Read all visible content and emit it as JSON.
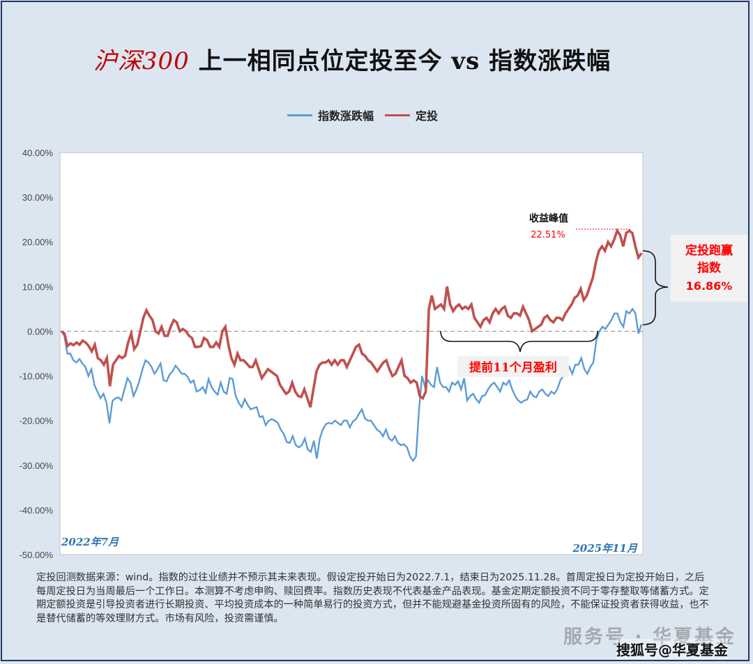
{
  "title": {
    "prefix": "沪深300",
    "main": "上一相同点位定投至今 vs 指数涨跌幅"
  },
  "colors": {
    "index": "#5b9bd5",
    "dca": "#c0504d",
    "frame": "#1f3864",
    "accent": "#ff0000"
  },
  "chart_data": {
    "type": "line",
    "ylim": [
      -50,
      40
    ],
    "yticks": [
      "40.00%",
      "30.00%",
      "20.00%",
      "10.00%",
      "0.00%",
      "-10.00%",
      "-20.00%",
      "-30.00%",
      "-40.00%",
      "-50.00%"
    ],
    "x_start_label": "2022年7月",
    "x_end_label": "2025年11月",
    "legend_position": "top-center",
    "grid": false,
    "series": [
      {
        "name": "指数涨跌幅",
        "color": "#5b9bd5",
        "values": [
          0,
          -1,
          -5,
          -5,
          -6.5,
          -7,
          -6.2,
          -7.2,
          -8,
          -10,
          -8.5,
          -12,
          -13.5,
          -15,
          -14,
          -16,
          -20.6,
          -15.6,
          -15,
          -14.8,
          -15.5,
          -13,
          -10.5,
          -11.5,
          -14.5,
          -13,
          -11,
          -8.5,
          -6.5,
          -7,
          -8,
          -9.5,
          -8.5,
          -7.2,
          -11,
          -11.2,
          -9.7,
          -9,
          -7.7,
          -8.5,
          -9.5,
          -9.5,
          -10.2,
          -11.5,
          -11,
          -13.5,
          -13.2,
          -12.5,
          -13.8,
          -10.7,
          -12.5,
          -13.5,
          -14.2,
          -11.5,
          -13.5,
          -14,
          -10.5,
          -10.7,
          -14.5,
          -16,
          -17,
          -15.2,
          -16.5,
          -17.5,
          -17.2,
          -17,
          -19.2,
          -19,
          -21,
          -20,
          -19.7,
          -20,
          -20.5,
          -22,
          -23,
          -24.8,
          -25,
          -23.5,
          -25.5,
          -26,
          -25.5,
          -24,
          -26.5,
          -27,
          -24.5,
          -28.5,
          -24,
          -22,
          -20.8,
          -20.5,
          -20.7,
          -20,
          -20.5,
          -21,
          -20,
          -20,
          -21.5,
          -20.2,
          -19.7,
          -18.5,
          -17.5,
          -19.5,
          -20,
          -20,
          -21,
          -22,
          -22.5,
          -23.5,
          -22,
          -24,
          -24.5,
          -23.5,
          -25,
          -25.5,
          -25.3,
          -26,
          -28,
          -29,
          -28,
          -17.5,
          -10,
          -12.5,
          -11,
          -12,
          -12.5,
          -8,
          -11.5,
          -12.5,
          -12.5,
          -13.5,
          -11.5,
          -12,
          -11.2,
          -13,
          -10.5,
          -15.5,
          -14.5,
          -14,
          -15.2,
          -16,
          -14.5,
          -14.3,
          -13,
          -12,
          -11.5,
          -12.5,
          -13.5,
          -11.5,
          -12,
          -11,
          -13,
          -14.5,
          -15.5,
          -16,
          -15.5,
          -15.3,
          -13.5,
          -14.5,
          -14.8,
          -13.5,
          -13,
          -14,
          -14.5,
          -13.5,
          -14,
          -13,
          -11,
          -10,
          -9,
          -8,
          -9.5,
          -7.5,
          -7.5,
          -6,
          -8.5,
          -9.5,
          -8,
          -7,
          -2,
          0,
          1,
          0.5,
          1.5,
          2.5,
          4,
          4,
          2,
          1,
          4.5,
          4,
          5,
          4,
          -0.5,
          1.5
        ]
      },
      {
        "name": "定投",
        "color": "#c0504d",
        "values": [
          0,
          -0.5,
          -3.3,
          -2.7,
          -3.1,
          -2.5,
          -3,
          -2.1,
          -2.5,
          -3.3,
          -4.5,
          -3,
          -6,
          -6.5,
          -7.5,
          -6,
          -12.3,
          -7.5,
          -6.5,
          -5.5,
          -6,
          -5.5,
          -2.5,
          -0.5,
          -4,
          -3,
          0,
          3,
          4.7,
          3.5,
          2.5,
          0,
          -0.5,
          1,
          -1,
          -1,
          1,
          2.5,
          2,
          0,
          0.5,
          0,
          -1,
          -1.5,
          -3.5,
          -3.5,
          -3.3,
          -1.5,
          -2,
          -3.5,
          -3.5,
          -2.5,
          -3.5,
          0,
          1,
          -3,
          -6,
          -7.5,
          -5,
          -6.5,
          -6.5,
          -7.2,
          -8,
          -8,
          -6.5,
          -8.5,
          -10.5,
          -9.5,
          -8.5,
          -9,
          -9.5,
          -10,
          -12,
          -13,
          -14,
          -13.5,
          -11.5,
          -13.5,
          -14.5,
          -14.7,
          -13,
          -15,
          -17,
          -13,
          -9,
          -7.5,
          -7,
          -7,
          -6.5,
          -7.5,
          -6.5,
          -7.5,
          -6.5,
          -6.5,
          -8,
          -6.5,
          -5,
          -3.5,
          -3,
          -5,
          -5.5,
          -6.5,
          -7,
          -8,
          -9,
          -8,
          -7,
          -6.5,
          -8.5,
          -10,
          -9.5,
          -8,
          -6.5,
          -10,
          -10.5,
          -11.5,
          -11,
          -11.5,
          -14.5,
          -15,
          -13.5,
          5,
          8,
          5,
          5.5,
          6,
          5,
          10,
          6,
          4.5,
          5.5,
          6,
          5,
          5.5,
          5,
          6,
          3,
          2,
          1,
          2.5,
          3,
          2,
          4,
          5,
          4,
          5,
          5.5,
          3.5,
          3,
          4,
          4,
          3.5,
          5.5,
          4,
          2.5,
          0,
          0.5,
          1,
          1.5,
          3,
          3.5,
          2.5,
          2,
          3,
          3,
          2.5,
          4,
          5,
          6,
          7.5,
          8,
          9.5,
          7,
          8,
          10,
          12,
          15.5,
          18,
          19,
          18,
          20,
          19,
          20.5,
          22.5,
          21.5,
          19,
          22,
          22.5,
          22,
          19,
          16.5,
          17.5
        ]
      }
    ]
  },
  "annotations": {
    "peak_label": "收益峰值",
    "peak_value": "22.51%",
    "early_profit": "提前11个月盈利",
    "beat_line1": "定投跑赢",
    "beat_line2": "指数",
    "beat_value": "16.86%"
  },
  "footnote": "定投回测数据来源：wind。指数的过往业绩并不预示其未来表现。假设定投开始日为2022.7.1，结束日为2025.11.28。首周定投日为定投开始日，之后每周定投日为当周最后一个工作日。本测算不考虑申购、赎回费率。指数历史表现不代表基金产品表现。基金定期定额投资不同于零存整取等储蓄方式。定期定额投资是引导投资者进行长期投资、平均投资成本的一种简单易行的投资方式，但并不能规避基金投资所固有的风险，不能保证投资者获得收益，也不是替代储蓄的等效理财方式。市场有风险，投资需谨慎。",
  "watermark": "服务号 · 华夏基金",
  "watermark2": "搜狐号@华夏基金"
}
